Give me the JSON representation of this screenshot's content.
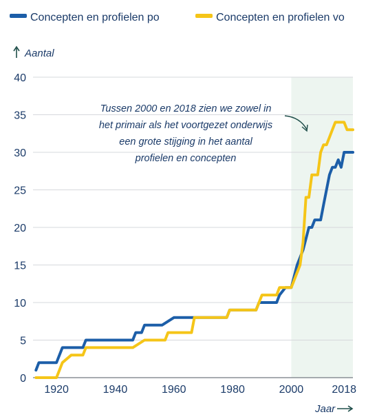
{
  "chart_data": {
    "type": "line",
    "title": "",
    "ylabel": "Aantal",
    "xlabel": "Jaar",
    "xlim": [
      1912,
      2021
    ],
    "ylim": [
      0,
      40
    ],
    "y_ticks": [
      0,
      5,
      10,
      15,
      20,
      25,
      30,
      35,
      40
    ],
    "x_ticks": [
      1920,
      1940,
      1960,
      1980,
      2000,
      2018
    ],
    "grid": true,
    "legend_position": "top",
    "highlight_range": [
      2000,
      2018
    ],
    "annotation": [
      "Tussen 2000 en 2018 zien we zowel in",
      "het primair als het voortgezet onderwijs",
      "een grote stijging in het aantal",
      "profielen en concepten"
    ],
    "series": [
      {
        "name": "Concepten en profielen po",
        "color": "#1c5ea8",
        "x": [
          1913,
          1914,
          1920,
          1922,
          1929,
          1930,
          1946,
          1947,
          1949,
          1950,
          1955,
          1956,
          1960,
          1961,
          1968,
          1978,
          1979,
          1988,
          1989,
          1990,
          1995,
          1996,
          1998,
          2000,
          2002,
          2004,
          2006,
          2007,
          2008,
          2010,
          2011,
          2013,
          2014,
          2015,
          2016,
          2017,
          2018,
          2019,
          2020,
          2021
        ],
        "values": [
          1,
          2,
          2,
          4,
          4,
          5,
          5,
          6,
          6,
          7,
          7,
          7,
          8,
          8,
          8,
          8,
          9,
          9,
          10,
          10,
          10,
          11,
          12,
          12,
          15,
          17,
          20,
          20,
          21,
          21,
          23,
          27,
          28,
          28,
          29,
          28,
          30,
          30,
          30,
          30
        ]
      },
      {
        "name": "Concepten en profielen vo",
        "color": "#f5c518",
        "x": [
          1913,
          1920,
          1921,
          1922,
          1925,
          1929,
          1930,
          1945,
          1946,
          1950,
          1951,
          1957,
          1958,
          1966,
          1967,
          1978,
          1979,
          1988,
          1989,
          1990,
          1992,
          1995,
          1996,
          2000,
          2003,
          2004,
          2005,
          2006,
          2007,
          2008,
          2009,
          2010,
          2011,
          2012,
          2013,
          2014,
          2015,
          2016,
          2017,
          2018,
          2019,
          2020,
          2021
        ],
        "values": [
          0,
          0,
          1,
          2,
          3,
          3,
          4,
          4,
          4,
          5,
          5,
          5,
          6,
          6,
          8,
          8,
          9,
          9,
          10,
          11,
          11,
          11,
          12,
          12,
          15,
          18,
          24,
          24,
          27,
          27,
          27,
          30,
          31,
          31,
          32,
          33,
          34,
          34,
          34,
          34,
          33,
          33,
          33
        ]
      }
    ]
  }
}
